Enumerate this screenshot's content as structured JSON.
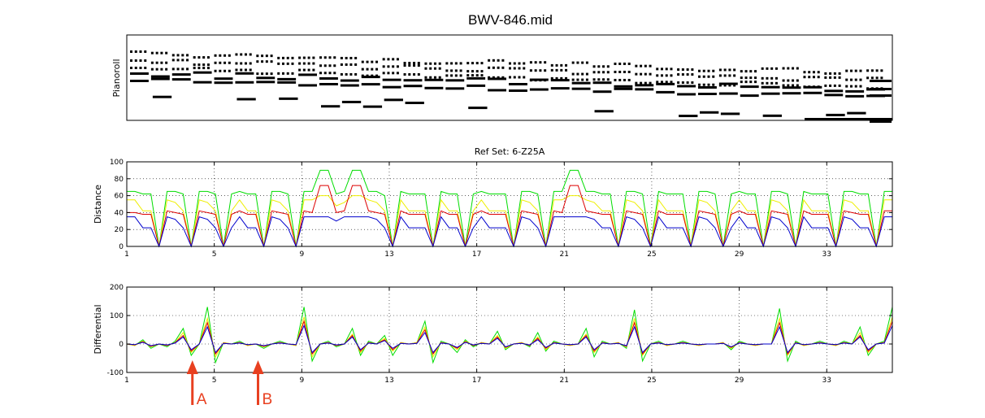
{
  "figure": {
    "title": "BWV-846.mid",
    "annotations": [
      {
        "label": "A",
        "at_x": 4,
        "color": "#e84020"
      },
      {
        "label": "B",
        "at_x": 7,
        "color": "#e84020"
      }
    ]
  },
  "chart_data": [
    {
      "type": "pianoroll",
      "ylabel": "Pianoroll",
      "title": "",
      "grid": false
    },
    {
      "type": "line",
      "title": "Ref Set: 6-Z25A",
      "ylabel": "Distance",
      "xlim": [
        1,
        36
      ],
      "ylim": [
        0,
        100
      ],
      "xticks": [
        1,
        5,
        9,
        13,
        17,
        21,
        25,
        29,
        33
      ],
      "yticks": [
        0,
        20,
        40,
        60,
        80,
        100
      ],
      "grid": true,
      "series": [
        {
          "color": "#00dd00",
          "values": [
            65,
            65,
            62,
            62,
            0,
            65,
            65,
            62,
            0,
            65,
            65,
            62,
            0,
            62,
            65,
            62,
            62,
            0,
            65,
            65,
            62,
            0,
            65,
            65,
            90,
            90,
            62,
            65,
            90,
            90,
            65,
            65,
            60,
            0,
            65,
            62,
            62,
            62,
            0,
            65,
            62,
            62,
            0,
            62,
            65,
            62,
            62,
            62,
            0,
            65,
            65,
            62,
            0,
            65,
            65,
            90,
            90,
            65,
            65,
            62,
            62,
            0,
            65,
            65,
            62,
            0,
            65,
            62,
            62,
            62,
            0,
            65,
            65,
            62,
            0,
            62,
            65,
            62,
            62,
            0,
            65,
            65,
            62,
            0,
            65,
            62,
            62,
            62,
            0,
            65,
            65,
            62,
            62,
            0,
            65,
            65
          ]
        },
        {
          "color": "#eeee00",
          "values": [
            55,
            55,
            42,
            42,
            0,
            55,
            52,
            42,
            0,
            55,
            52,
            42,
            0,
            42,
            55,
            42,
            42,
            0,
            55,
            52,
            42,
            0,
            55,
            55,
            60,
            60,
            48,
            52,
            60,
            60,
            55,
            52,
            42,
            0,
            55,
            42,
            42,
            42,
            0,
            55,
            42,
            42,
            0,
            42,
            55,
            42,
            42,
            42,
            0,
            55,
            52,
            42,
            0,
            55,
            55,
            60,
            60,
            55,
            52,
            42,
            42,
            0,
            55,
            52,
            42,
            0,
            55,
            42,
            42,
            42,
            0,
            55,
            52,
            42,
            0,
            42,
            55,
            42,
            42,
            0,
            55,
            52,
            42,
            0,
            55,
            42,
            42,
            42,
            0,
            55,
            52,
            42,
            42,
            0,
            55,
            55
          ]
        },
        {
          "color": "#dd0000",
          "values": [
            40,
            40,
            38,
            38,
            0,
            42,
            40,
            38,
            0,
            42,
            40,
            38,
            0,
            38,
            42,
            38,
            38,
            0,
            42,
            40,
            38,
            0,
            42,
            40,
            72,
            72,
            40,
            42,
            72,
            72,
            42,
            40,
            38,
            0,
            42,
            38,
            38,
            38,
            0,
            42,
            38,
            38,
            0,
            38,
            42,
            38,
            38,
            38,
            0,
            42,
            40,
            38,
            0,
            42,
            40,
            72,
            72,
            42,
            40,
            38,
            38,
            0,
            42,
            40,
            38,
            0,
            42,
            38,
            38,
            38,
            0,
            42,
            40,
            38,
            0,
            38,
            42,
            38,
            38,
            0,
            42,
            40,
            38,
            0,
            42,
            38,
            38,
            38,
            0,
            42,
            40,
            38,
            38,
            0,
            42,
            42
          ]
        },
        {
          "color": "#0000cc",
          "values": [
            35,
            35,
            22,
            22,
            0,
            35,
            32,
            22,
            0,
            35,
            32,
            22,
            0,
            22,
            35,
            22,
            22,
            0,
            35,
            32,
            22,
            0,
            35,
            35,
            35,
            35,
            30,
            35,
            35,
            35,
            35,
            32,
            22,
            0,
            35,
            22,
            22,
            22,
            0,
            35,
            22,
            22,
            0,
            22,
            35,
            22,
            22,
            22,
            0,
            35,
            32,
            22,
            0,
            35,
            35,
            35,
            35,
            35,
            32,
            22,
            22,
            0,
            35,
            32,
            22,
            0,
            35,
            22,
            22,
            22,
            0,
            35,
            32,
            22,
            0,
            22,
            35,
            22,
            22,
            0,
            35,
            32,
            22,
            0,
            35,
            22,
            22,
            22,
            0,
            35,
            32,
            22,
            22,
            0,
            35,
            35
          ]
        }
      ]
    },
    {
      "type": "line",
      "title": "",
      "ylabel": "Differential",
      "xlim": [
        1,
        36
      ],
      "ylim": [
        -100,
        200
      ],
      "xticks": [
        1,
        5,
        9,
        13,
        17,
        21,
        25,
        29,
        33
      ],
      "yticks": [
        -100,
        0,
        100,
        200
      ],
      "grid": true,
      "series": [
        {
          "color": "#00dd00",
          "values": [
            0,
            -5,
            15,
            -15,
            0,
            -10,
            10,
            55,
            -40,
            0,
            130,
            -65,
            5,
            0,
            10,
            -5,
            0,
            -15,
            0,
            10,
            0,
            -5,
            130,
            -60,
            0,
            10,
            -10,
            0,
            55,
            -40,
            10,
            0,
            30,
            -40,
            5,
            0,
            5,
            80,
            -65,
            10,
            0,
            -30,
            15,
            -10,
            5,
            0,
            45,
            -20,
            0,
            5,
            -10,
            40,
            -25,
            10,
            0,
            -5,
            0,
            55,
            -45,
            10,
            0,
            5,
            -15,
            120,
            -60,
            0,
            10,
            -5,
            0,
            10,
            0,
            -5,
            0,
            0,
            5,
            -20,
            10,
            0,
            -5,
            0,
            0,
            125,
            -60,
            10,
            -5,
            0,
            10,
            0,
            -5,
            10,
            0,
            60,
            -40,
            0,
            10,
            130
          ]
        },
        {
          "color": "#eeee00",
          "values": [
            0,
            -5,
            10,
            -10,
            0,
            -5,
            5,
            40,
            -30,
            0,
            90,
            -45,
            5,
            0,
            5,
            -5,
            0,
            -10,
            0,
            5,
            0,
            -5,
            95,
            -45,
            0,
            5,
            -5,
            0,
            35,
            -30,
            5,
            0,
            20,
            -25,
            5,
            0,
            5,
            60,
            -45,
            5,
            0,
            -20,
            10,
            -5,
            5,
            0,
            30,
            -15,
            0,
            5,
            -5,
            25,
            -20,
            5,
            0,
            -5,
            0,
            35,
            -30,
            5,
            0,
            5,
            -10,
            90,
            -40,
            0,
            5,
            -5,
            0,
            5,
            0,
            -5,
            0,
            0,
            5,
            -15,
            5,
            0,
            -5,
            0,
            0,
            90,
            -40,
            5,
            -5,
            0,
            5,
            0,
            -5,
            5,
            0,
            40,
            -30,
            0,
            5,
            95
          ]
        },
        {
          "color": "#dd0000",
          "values": [
            0,
            -3,
            8,
            -8,
            0,
            -5,
            5,
            30,
            -25,
            0,
            75,
            -35,
            3,
            0,
            5,
            -3,
            0,
            -8,
            0,
            5,
            0,
            -3,
            80,
            -35,
            0,
            5,
            -5,
            0,
            30,
            -25,
            5,
            0,
            15,
            -20,
            3,
            0,
            3,
            50,
            -35,
            5,
            0,
            -15,
            8,
            -5,
            3,
            0,
            25,
            -12,
            0,
            3,
            -5,
            20,
            -15,
            5,
            0,
            -3,
            0,
            30,
            -25,
            5,
            0,
            3,
            -8,
            75,
            -35,
            0,
            5,
            -3,
            0,
            5,
            0,
            -3,
            0,
            0,
            3,
            -12,
            5,
            0,
            -3,
            0,
            0,
            75,
            -35,
            5,
            -3,
            0,
            5,
            0,
            -3,
            5,
            0,
            30,
            -25,
            0,
            5,
            80
          ]
        },
        {
          "color": "#0000cc",
          "values": [
            0,
            -2,
            6,
            -6,
            0,
            -3,
            3,
            25,
            -20,
            0,
            60,
            -30,
            2,
            0,
            3,
            -2,
            0,
            -6,
            0,
            3,
            0,
            -2,
            65,
            -30,
            0,
            3,
            -3,
            0,
            25,
            -20,
            3,
            0,
            12,
            -15,
            2,
            0,
            2,
            40,
            -30,
            3,
            0,
            -12,
            6,
            -3,
            2,
            0,
            20,
            -10,
            0,
            2,
            -3,
            15,
            -12,
            3,
            0,
            -2,
            0,
            25,
            -20,
            3,
            0,
            2,
            -6,
            60,
            -30,
            0,
            3,
            -2,
            0,
            3,
            0,
            -2,
            0,
            0,
            2,
            -10,
            3,
            0,
            -2,
            0,
            0,
            60,
            -30,
            3,
            -2,
            0,
            3,
            0,
            -2,
            3,
            0,
            25,
            -20,
            0,
            3,
            65
          ]
        }
      ]
    }
  ]
}
